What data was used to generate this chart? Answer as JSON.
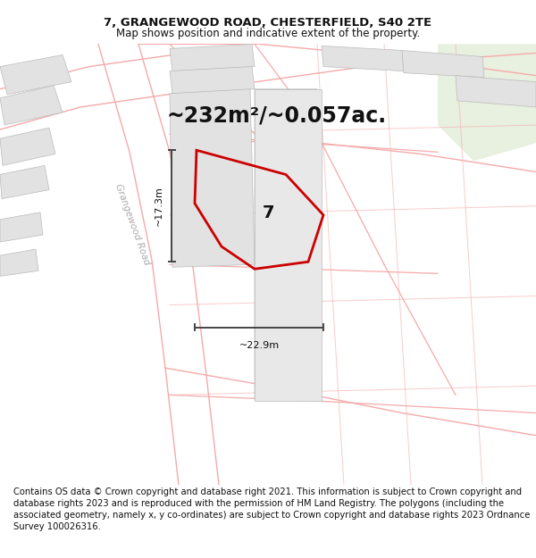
{
  "title_line1": "7, GRANGEWOOD ROAD, CHESTERFIELD, S40 2TE",
  "title_line2": "Map shows position and indicative extent of the property.",
  "area_text": "~232m²/~0.057ac.",
  "number_label": "7",
  "dim_horizontal": "~22.9m",
  "dim_vertical": "~17.3m",
  "road_label": "Grangewood Road",
  "footer_text": "Contains OS data © Crown copyright and database right 2021. This information is subject to Crown copyright and database rights 2023 and is reproduced with the permission of HM Land Registry. The polygons (including the associated geometry, namely x, y co-ordinates) are subject to Crown copyright and database rights 2023 Ordnance Survey 100026316.",
  "bg_color": "#ffffff",
  "map_bg": "#ffffff",
  "building_color": "#e2e2e2",
  "road_line_color": "#f5aaaa",
  "boundary_color": "#cc0000",
  "dim_line_color": "#444444",
  "sep_color": "#cccccc",
  "title_fontsize": 9.5,
  "subtitle_fontsize": 8.5,
  "area_fontsize": 17,
  "label_fontsize": 14,
  "footer_fontsize": 7.2,
  "road_label_color": "#aaaaaa",
  "corner_green": "#e8f0e0"
}
